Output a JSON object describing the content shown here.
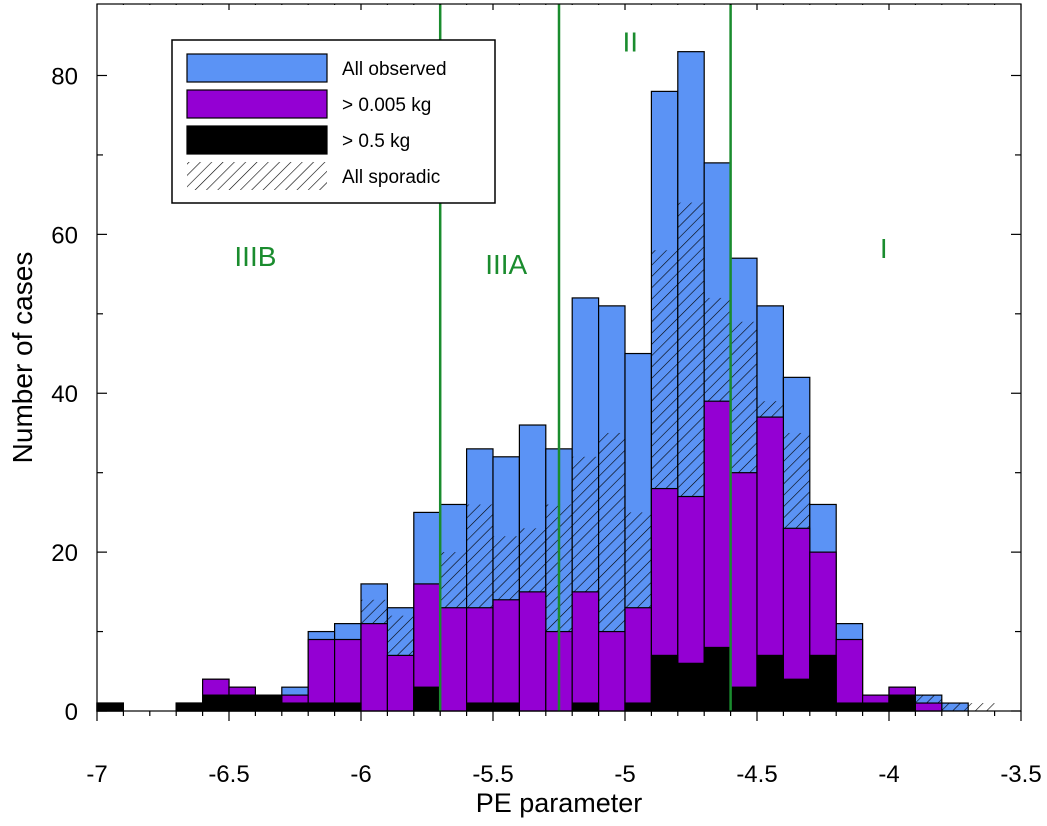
{
  "chart_data": {
    "type": "bar",
    "title": "",
    "xlabel": "PE parameter",
    "ylabel": "Number of cases",
    "xlim": [
      -7,
      -3.5
    ],
    "ylim": [
      0,
      89
    ],
    "bin_width": 0.1,
    "xticks": [
      -7,
      -6.5,
      -6,
      -5.5,
      -5,
      -4.5,
      -4,
      -3.5
    ],
    "yticks": [
      0,
      20,
      40,
      60,
      80
    ],
    "xtick_labels": [
      "-7",
      "-6.5",
      "-6",
      "-5.5",
      "-5",
      "-4.5",
      "-4",
      "-3.5"
    ],
    "ytick_labels": [
      "0",
      "20",
      "40",
      "60",
      "80"
    ],
    "bin_starts": [
      -7.0,
      -6.9,
      -6.8,
      -6.7,
      -6.6,
      -6.5,
      -6.4,
      -6.3,
      -6.2,
      -6.1,
      -6.0,
      -5.9,
      -5.8,
      -5.7,
      -5.6,
      -5.5,
      -5.4,
      -5.3,
      -5.2,
      -5.1,
      -5.0,
      -4.9,
      -4.8,
      -4.7,
      -4.6,
      -4.5,
      -4.4,
      -4.3,
      -4.2,
      -4.1,
      -4.0,
      -3.9,
      -3.8,
      -3.7
    ],
    "series": [
      {
        "name": "All observed",
        "color": "#5b93f5",
        "values": [
          1,
          0,
          0,
          1,
          4,
          3,
          2,
          3,
          10,
          11,
          16,
          13,
          25,
          26,
          33,
          32,
          36,
          33,
          52,
          51,
          45,
          78,
          83,
          69,
          57,
          51,
          42,
          26,
          11,
          2,
          3,
          2,
          1,
          0
        ]
      },
      {
        "name": "All sporadic",
        "color": "#000000",
        "values": [
          1,
          0,
          0,
          1,
          4,
          3,
          2,
          2,
          9,
          9,
          14,
          12,
          16,
          20,
          26,
          22,
          23,
          26,
          32,
          35,
          25,
          58,
          64,
          52,
          49,
          39,
          35,
          20,
          9,
          2,
          3,
          2,
          1,
          1
        ]
      },
      {
        "name": "> 0.005 kg",
        "color": "#9400d3",
        "values": [
          1,
          0,
          0,
          1,
          4,
          3,
          2,
          2,
          9,
          9,
          11,
          7,
          16,
          13,
          13,
          14,
          15,
          10,
          15,
          10,
          13,
          28,
          27,
          39,
          30,
          37,
          23,
          20,
          9,
          2,
          3,
          1,
          0,
          0
        ]
      },
      {
        "name": "> 0.5 kg",
        "color": "#000000",
        "values": [
          1,
          0,
          0,
          1,
          2,
          2,
          2,
          1,
          1,
          1,
          0,
          0,
          3,
          0,
          1,
          1,
          0,
          0,
          1,
          0,
          1,
          7,
          6,
          8,
          3,
          7,
          4,
          7,
          1,
          1,
          2,
          0,
          0,
          0
        ]
      }
    ],
    "legend": {
      "position": "top-left",
      "entries": [
        "All observed",
        "> 0.005 kg",
        "> 0.5 kg",
        "All sporadic"
      ]
    },
    "region_lines": [
      -5.7,
      -5.25,
      -4.6
    ],
    "region_line_color": "#1a8c2e",
    "regions": [
      {
        "label": "IIIB",
        "x": -6.4,
        "y": 56
      },
      {
        "label": "IIIA",
        "x": -5.45,
        "y": 55
      },
      {
        "label": "II",
        "x": -4.98,
        "y": 83
      },
      {
        "label": "I",
        "x": -4.02,
        "y": 57
      }
    ]
  }
}
